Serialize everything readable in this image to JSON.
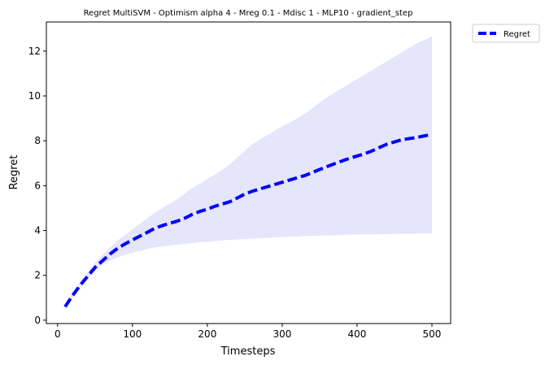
{
  "chart_data": {
    "type": "line",
    "title": "Regret MultiSVM - Optimism alpha 4 - Mreg 0.1 - Mdisc 1 - MLP10 - gradient_step",
    "xlabel": "Timesteps",
    "ylabel": "Regret",
    "xlim": [
      -15,
      525
    ],
    "ylim": [
      -0.15,
      13.3
    ],
    "xticks": [
      0,
      100,
      200,
      300,
      400,
      500
    ],
    "yticks": [
      0,
      2,
      4,
      6,
      8,
      10,
      12
    ],
    "grid": false,
    "legend_position": "outside-top-right",
    "series": [
      {
        "name": "Regret",
        "color": "#0000ff",
        "linestyle": "dashed",
        "band_color": "#e5e5fc",
        "x": [
          10,
          20,
          30,
          40,
          50,
          60,
          70,
          80,
          90,
          100,
          110,
          120,
          130,
          140,
          150,
          160,
          170,
          180,
          190,
          200,
          210,
          220,
          230,
          240,
          250,
          260,
          270,
          280,
          290,
          300,
          310,
          320,
          330,
          340,
          350,
          360,
          370,
          380,
          390,
          400,
          410,
          420,
          430,
          440,
          450,
          460,
          470,
          480,
          490,
          500
        ],
        "values": [
          0.6,
          1.1,
          1.55,
          1.95,
          2.35,
          2.65,
          2.95,
          3.2,
          3.4,
          3.58,
          3.75,
          3.92,
          4.1,
          4.22,
          4.32,
          4.42,
          4.55,
          4.72,
          4.85,
          4.95,
          5.08,
          5.18,
          5.28,
          5.45,
          5.62,
          5.75,
          5.85,
          5.95,
          6.05,
          6.15,
          6.25,
          6.35,
          6.45,
          6.58,
          6.72,
          6.85,
          6.98,
          7.1,
          7.22,
          7.32,
          7.42,
          7.55,
          7.7,
          7.85,
          7.95,
          8.05,
          8.1,
          8.15,
          8.22,
          8.28
        ],
        "lower": [
          0.5,
          1.0,
          1.45,
          1.85,
          2.2,
          2.45,
          2.65,
          2.8,
          2.92,
          3.02,
          3.1,
          3.18,
          3.25,
          3.3,
          3.33,
          3.37,
          3.4,
          3.44,
          3.47,
          3.5,
          3.53,
          3.56,
          3.58,
          3.6,
          3.62,
          3.64,
          3.66,
          3.67,
          3.69,
          3.7,
          3.72,
          3.73,
          3.75,
          3.76,
          3.77,
          3.78,
          3.79,
          3.8,
          3.81,
          3.82,
          3.83,
          3.83,
          3.84,
          3.84,
          3.85,
          3.85,
          3.86,
          3.86,
          3.87,
          3.87
        ],
        "upper": [
          0.7,
          1.2,
          1.7,
          2.15,
          2.55,
          2.9,
          3.25,
          3.55,
          3.8,
          4.05,
          4.3,
          4.55,
          4.8,
          5.0,
          5.2,
          5.4,
          5.65,
          5.9,
          6.1,
          6.3,
          6.5,
          6.7,
          6.95,
          7.25,
          7.55,
          7.85,
          8.05,
          8.25,
          8.45,
          8.65,
          8.82,
          9.0,
          9.2,
          9.45,
          9.7,
          9.95,
          10.15,
          10.35,
          10.55,
          10.75,
          10.95,
          11.15,
          11.35,
          11.55,
          11.75,
          11.95,
          12.15,
          12.35,
          12.5,
          12.65
        ]
      }
    ]
  }
}
